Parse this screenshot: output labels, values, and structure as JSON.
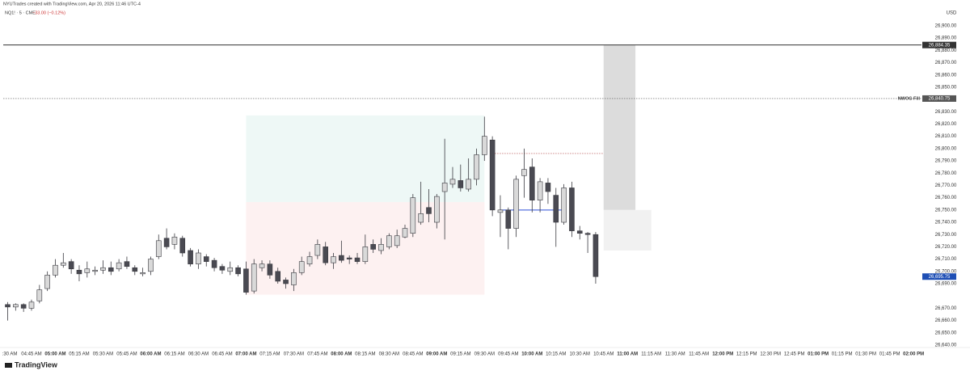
{
  "chart_data": {
    "type": "candlestick",
    "attribution": "NYUTrades created with TradingView.com, Apr 20, 2026 11:46 UTC-4",
    "title": "NQ1! · 5 · CME",
    "subtitle": "−33.00 (−0.12%)",
    "currency": "USD",
    "brand": "TradingView",
    "ylim": [
      26638,
      26921
    ],
    "yticks": [
      {
        "value": 26900,
        "label": "26,900.00"
      },
      {
        "value": 26890,
        "label": "26,890.00"
      },
      {
        "value": 26880,
        "label": "26,880.00"
      },
      {
        "value": 26870,
        "label": "26,870.00"
      },
      {
        "value": 26860,
        "label": "26,860.00"
      },
      {
        "value": 26850,
        "label": "26,850.00"
      },
      {
        "value": 26830,
        "label": "26,830.00"
      },
      {
        "value": 26820,
        "label": "26,820.00"
      },
      {
        "value": 26810,
        "label": "26,810.00"
      },
      {
        "value": 26800,
        "label": "26,800.00"
      },
      {
        "value": 26790,
        "label": "26,790.00"
      },
      {
        "value": 26780,
        "label": "26,780.00"
      },
      {
        "value": 26770,
        "label": "26,770.00"
      },
      {
        "value": 26760,
        "label": "26,760.00"
      },
      {
        "value": 26750,
        "label": "26,750.00"
      },
      {
        "value": 26740,
        "label": "26,740.00"
      },
      {
        "value": 26730,
        "label": "26,730.00"
      },
      {
        "value": 26720,
        "label": "26,720.00"
      },
      {
        "value": 26710,
        "label": "26,710.00"
      },
      {
        "value": 26700,
        "label": "26,700.00"
      },
      {
        "value": 26690,
        "label": "26,690.00"
      },
      {
        "value": 26670,
        "label": "26,670.00"
      },
      {
        "value": 26660,
        "label": "26,660.00"
      },
      {
        "value": 26650,
        "label": "26,650.00"
      },
      {
        "value": 26640,
        "label": "26,640.00"
      }
    ],
    "xticks": [
      ":30 AM",
      "04:45 AM",
      "05:00 AM",
      "05:15 AM",
      "05:30 AM",
      "05:45 AM",
      "06:00 AM",
      "06:15 AM",
      "06:30 AM",
      "06:45 AM",
      "07:00 AM",
      "07:15 AM",
      "07:30 AM",
      "07:45 AM",
      "08:00 AM",
      "08:15 AM",
      "08:30 AM",
      "08:45 AM",
      "09:00 AM",
      "09:15 AM",
      "09:30 AM",
      "09:45 AM",
      "10:00 AM",
      "10:15 AM",
      "10:30 AM",
      "10:45 AM",
      "11:00 AM",
      "11:15 AM",
      "11:30 AM",
      "11:45 AM",
      "12:00 PM",
      "12:15 PM",
      "12:30 PM",
      "12:45 PM",
      "01:00 PM",
      "01:15 PM",
      "01:30 PM",
      "01:45 PM",
      "02:00 PM"
    ],
    "up_color": "#d9d9d9",
    "down_color": "#4a4a52",
    "wick_color": "#3a3a40",
    "open": [
      26673,
      26671,
      26673,
      26670,
      26676,
      26686,
      26697,
      26705,
      26708,
      26701,
      26699,
      26700,
      26701,
      26703,
      26702,
      26708,
      26703,
      26698,
      26700,
      26712,
      26727,
      26722,
      26727,
      26717,
      26706,
      26712,
      26709,
      26704,
      26700,
      26703,
      26702,
      26684,
      26703,
      26706,
      26700,
      26693,
      26689,
      26699,
      26706,
      26713,
      26720,
      26707,
      26713,
      26711,
      26711,
      26708,
      26722,
      26717,
      26720,
      26721,
      26728,
      26731,
      26740,
      26752,
      26740,
      26765,
      26771,
      26774,
      26767,
      26775,
      26795,
      26807,
      26748,
      26750,
      26735,
      26778,
      26785,
      26758,
      26772,
      26762,
      26740,
      26768,
      26733,
      26731,
      26730
    ],
    "high": [
      26675,
      26674,
      26674,
      26677,
      26689,
      26700,
      26710,
      26715,
      26710,
      26705,
      26708,
      26704,
      26709,
      26708,
      26710,
      26712,
      26705,
      26703,
      26712,
      26730,
      26735,
      26731,
      26729,
      26719,
      26718,
      26714,
      26711,
      26706,
      26708,
      26705,
      26708,
      26710,
      26709,
      26709,
      26703,
      26695,
      26702,
      26712,
      26716,
      26726,
      26724,
      26715,
      26725,
      26713,
      26715,
      26730,
      26726,
      26727,
      26731,
      26734,
      26738,
      26763,
      26773,
      26767,
      26763,
      26808,
      26785,
      26787,
      26792,
      26800,
      26826,
      26810,
      26762,
      26752,
      26778,
      26800,
      26792,
      26776,
      26776,
      26768,
      26771,
      26773,
      26737,
      26732,
      26732
    ],
    "low": [
      26660,
      26668,
      26667,
      26668,
      26674,
      26684,
      26695,
      26703,
      26698,
      26692,
      26695,
      26697,
      26698,
      26697,
      26700,
      26702,
      26697,
      26696,
      26697,
      26710,
      26718,
      26718,
      26712,
      26704,
      26702,
      26704,
      26700,
      26698,
      26697,
      26696,
      26681,
      26682,
      26700,
      26694,
      26690,
      26686,
      26684,
      26697,
      26704,
      26710,
      26705,
      26702,
      26707,
      26706,
      26706,
      26706,
      26715,
      26714,
      26718,
      26719,
      26727,
      26728,
      26738,
      26740,
      26735,
      26726,
      26768,
      26765,
      26765,
      26770,
      26790,
      26745,
      26728,
      26718,
      26728,
      26760,
      26748,
      26748,
      26755,
      26720,
      26738,
      26728,
      26726,
      26715,
      26690
    ],
    "close": [
      26671,
      26673,
      26670,
      26675,
      26685,
      26697,
      26705,
      26707,
      26702,
      26698,
      26702,
      26701,
      26703,
      26700,
      26707,
      26704,
      26700,
      26699,
      26710,
      26725,
      26720,
      26728,
      26715,
      26706,
      26715,
      26708,
      26703,
      26701,
      26703,
      26698,
      26683,
      26706,
      26706,
      26697,
      26692,
      26690,
      26699,
      26708,
      26712,
      26722,
      26707,
      26712,
      26709,
      26710,
      26708,
      26720,
      26718,
      26722,
      26729,
      26729,
      26735,
      26760,
      26747,
      26747,
      26761,
      26772,
      26775,
      26768,
      26775,
      26795,
      26810,
      26750,
      26750,
      26735,
      26775,
      26783,
      26758,
      26773,
      26765,
      26740,
      26768,
      26733,
      26731,
      26730,
      26695.75
    ],
    "zones": [
      {
        "top": 26827,
        "bottom": 26756.5,
        "from": 30,
        "to": 60,
        "color": "#eef8f6"
      },
      {
        "top": 26756.5,
        "bottom": 26681,
        "from": 30,
        "to": 60,
        "color": "#fdf1f1"
      },
      {
        "top": 26884.35,
        "bottom": 26750,
        "from": 75,
        "to": 79,
        "color": "#dcdcdc"
      },
      {
        "top": 26750,
        "bottom": 26717,
        "from": 75,
        "to": 81,
        "color": "#f1f1f1"
      }
    ],
    "segments": [
      {
        "value": 26750,
        "from": 62,
        "to": 70,
        "color": "#2a4fd6"
      },
      {
        "value": 26796,
        "from": 61,
        "to": 75,
        "color": "#b04040"
      }
    ],
    "levels": [
      {
        "value": 26884.35,
        "value_label": "26,884.35",
        "color": "#333333"
      },
      {
        "name": "NWOG Fill",
        "value": 26840.75,
        "value_label": "26,840.75",
        "color": "#555555"
      }
    ],
    "last_price": {
      "value": 26695.75,
      "label": "26,695.75",
      "color": "#1f4fb5"
    }
  }
}
